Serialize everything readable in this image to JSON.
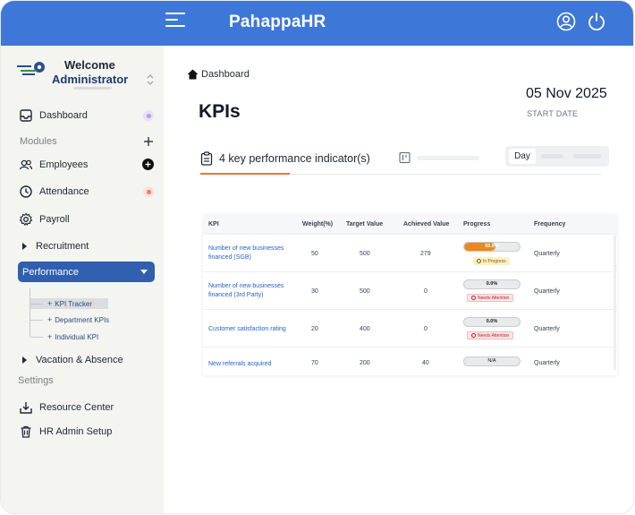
{
  "app": {
    "brand": "PahappaHR"
  },
  "sidebar": {
    "welcome": "Welcome",
    "role": "Administrator",
    "items": {
      "dashboard": "Dashboard",
      "modules": "Modules",
      "employees": "Employees",
      "attendance": "Attendance",
      "payroll": "Payroll",
      "recruitment": "Recruitment",
      "performance": "Performance",
      "vacation": "Vacation & Absence",
      "settings": "Settings",
      "resource_center": "Resource Center",
      "hr_admin": "HR Admin Setup"
    },
    "performance_sub": [
      "KPI Tracker",
      "Department KPIs",
      "Individual KPI"
    ],
    "dot_colors": {
      "dashboard": "#b69cf0",
      "attendance": "#f2795f"
    }
  },
  "main": {
    "breadcrumb": "Dashboard",
    "title": "KPIs",
    "date": "05 Nov 2025",
    "date_label": "START DATE",
    "tab_label": "4 key performance indicator(s)",
    "segment_selected": "Day",
    "accent": "#e8772e"
  },
  "table": {
    "headers": [
      "KPI",
      "Weight(%)",
      "Target Value",
      "Achieved Value",
      "Progress",
      "Frequency"
    ],
    "rows": [
      {
        "kpi": "Number of new businesses financed (SGB)",
        "weight": "50",
        "target": "500",
        "achieved": "279",
        "progress_text": "55.8%",
        "progress": 0.558,
        "status": "In Progress",
        "status_type": "prog",
        "frequency": "Quarterly"
      },
      {
        "kpi": "Number of new businesses financed (3rd Party)",
        "weight": "30",
        "target": "500",
        "achieved": "0",
        "progress_text": "0.0%",
        "progress": 0,
        "status": "Needs Attention",
        "status_type": "attn",
        "frequency": "Quarterly"
      },
      {
        "kpi": "Customer satisfaction rating",
        "weight": "20",
        "target": "400",
        "achieved": "0",
        "progress_text": "0.0%",
        "progress": 0,
        "status": "Needs Attention",
        "status_type": "attn",
        "frequency": "Quarterly"
      },
      {
        "kpi": "New referrals acquired",
        "weight": "70",
        "target": "200",
        "achieved": "40",
        "progress_text": "N/A",
        "progress": 0,
        "status": "",
        "status_type": "",
        "frequency": "Quarterly"
      }
    ]
  }
}
